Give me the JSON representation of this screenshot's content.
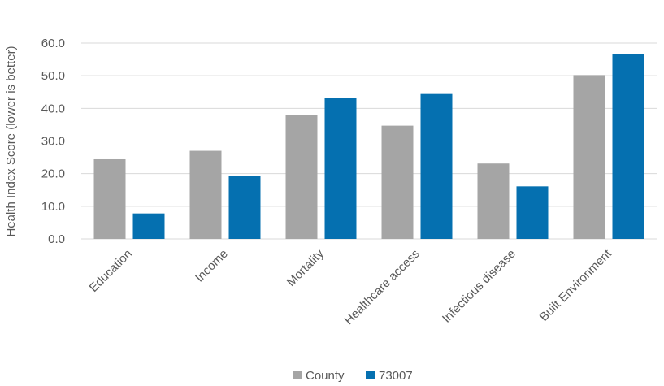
{
  "chart_data": {
    "type": "bar",
    "categories": [
      "Education",
      "Income",
      "Mortality",
      "Healthcare access",
      "Infectious disease",
      "Built Environment"
    ],
    "series": [
      {
        "name": "County",
        "values": [
          24.4,
          27.0,
          38.0,
          34.7,
          23.1,
          50.2
        ],
        "color": "#a5a5a5"
      },
      {
        "name": "73007",
        "values": [
          7.8,
          19.3,
          43.1,
          44.4,
          16.1,
          56.6
        ],
        "color": "#0570b0"
      }
    ],
    "title": "",
    "xlabel": "",
    "ylabel": "Health Index Score (lower is better)",
    "ylim": [
      0,
      60
    ],
    "yticks": [
      0,
      10,
      20,
      30,
      40,
      50,
      60
    ],
    "ytick_labels": [
      "0.0",
      "10.0",
      "20.0",
      "30.0",
      "40.0",
      "50.0",
      "60.0"
    ],
    "grid": true,
    "legend_position": "bottom-center"
  }
}
